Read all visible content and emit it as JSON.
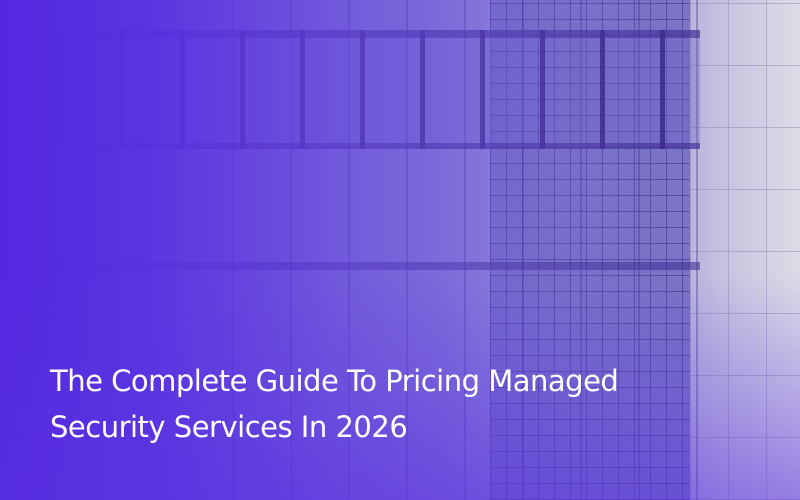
{
  "hero": {
    "title_lines": [
      "The Complete Guide To Pricing Managed",
      "Security Services In 2026"
    ],
    "colors": {
      "overlay": "#5428e0",
      "text": "#ffffff"
    },
    "background_image": "glass-office-building-photo"
  }
}
